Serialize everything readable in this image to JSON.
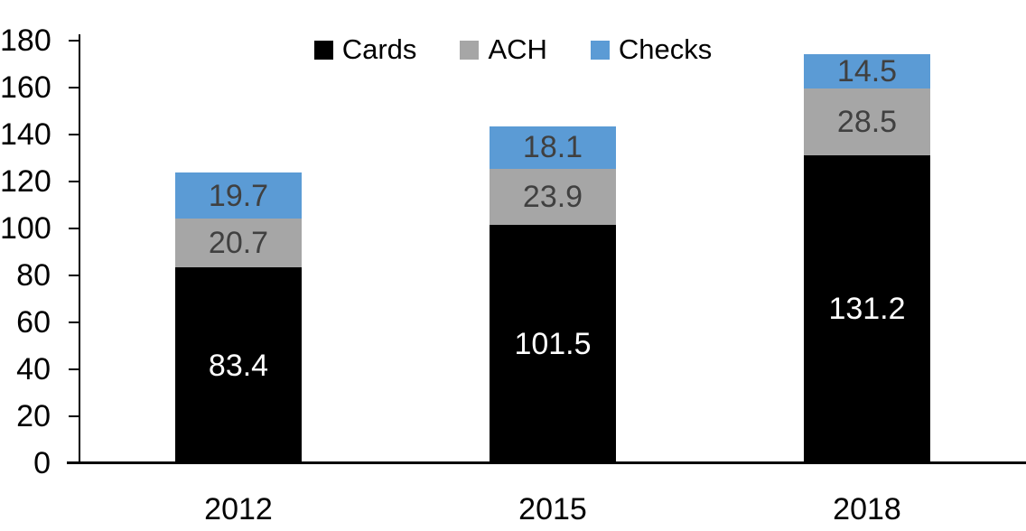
{
  "chart_data": {
    "type": "bar",
    "stacked": true,
    "title": "",
    "categories": [
      "2012",
      "2015",
      "2018"
    ],
    "series": [
      {
        "name": "Cards",
        "color": "#000000",
        "label_color": "#FFFFFF",
        "values": [
          83.4,
          101.5,
          131.2
        ]
      },
      {
        "name": "ACH",
        "color": "#A6A6A6",
        "label_color": "#404040",
        "values": [
          20.7,
          23.9,
          28.5
        ]
      },
      {
        "name": "Checks",
        "color": "#5B9BD5",
        "label_color": "#404040",
        "values": [
          19.7,
          18.1,
          14.5
        ]
      }
    ],
    "ylim": [
      0,
      180
    ],
    "ytick_step": 20,
    "xlabel": "",
    "ylabel": "",
    "legend_position": "top",
    "grid": false,
    "axis_color": "#000000"
  }
}
